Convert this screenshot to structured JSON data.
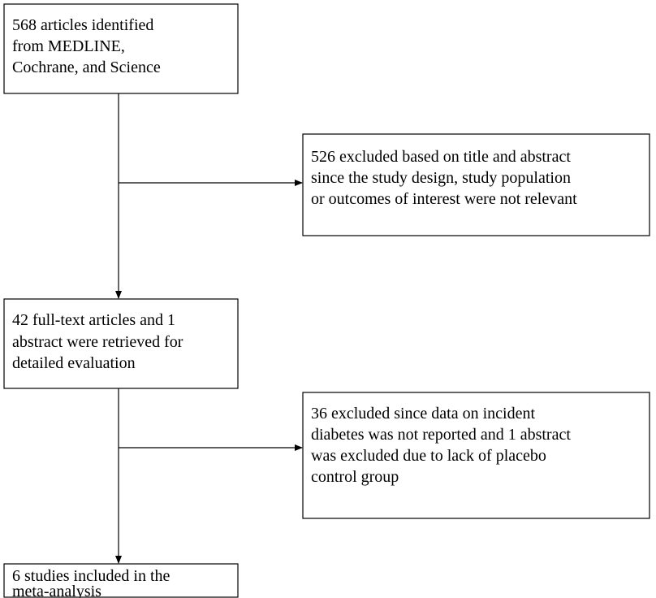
{
  "nodes": [
    {
      "lines": [
        "568 articles identified",
        "from MEDLINE,",
        "Cochrane, and Science"
      ]
    },
    {
      "lines": [
        "526 excluded based on title and abstract",
        "since the study design, study population",
        "or outcomes of interest were not relevant"
      ]
    },
    {
      "lines": [
        "42 full-text articles and 1",
        "abstract were retrieved for",
        "detailed evaluation"
      ]
    },
    {
      "lines": [
        "36 excluded since data on incident",
        "diabetes was not reported and 1 abstract",
        "was excluded due to lack of placebo",
        "control group"
      ]
    },
    {
      "lines": [
        "6 studies included in the",
        "meta-analysis"
      ]
    }
  ]
}
